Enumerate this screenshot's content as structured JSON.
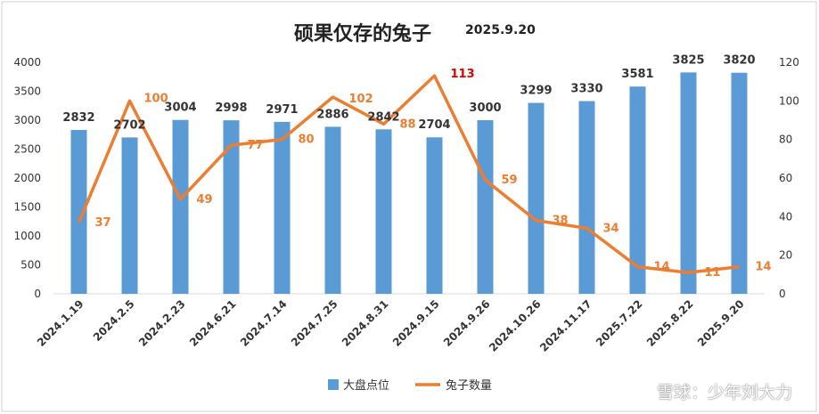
{
  "chart_data": {
    "type": "bar+line",
    "title": "硕果仅存的兔子",
    "subtitle": "2025.9.20",
    "categories": [
      "2024.1.19",
      "2024.2.5",
      "2024.2.23",
      "2024.6.21",
      "2024.7.14",
      "2024.7.25",
      "2024.8.31",
      "2024.9.15",
      "2024.9.26",
      "2024.10.26",
      "2024.11.17",
      "2025.7.22",
      "2025.8.22",
      "2025.9.20"
    ],
    "series": [
      {
        "name": "大盘点位",
        "type": "bar",
        "axis": "left",
        "color": "#5b9bd5",
        "values": [
          2832,
          2702,
          3004,
          2998,
          2971,
          2886,
          2842,
          2704,
          3000,
          3299,
          3330,
          3581,
          3825,
          3820
        ]
      },
      {
        "name": "兔子数量",
        "type": "line",
        "axis": "right",
        "color": "#ed7d31",
        "values": [
          37,
          100,
          49,
          77,
          80,
          102,
          88,
          113,
          59,
          38,
          34,
          14,
          11,
          14
        ]
      }
    ],
    "y_left": {
      "min": 0,
      "max": 4000,
      "ticks": [
        0,
        500,
        1000,
        1500,
        2000,
        2500,
        3000,
        3500,
        4000
      ]
    },
    "y_right": {
      "min": 0,
      "max": 120,
      "ticks": [
        0,
        20,
        40,
        60,
        80,
        100,
        120
      ]
    },
    "highlight": {
      "value": 113,
      "color": "#e00000"
    },
    "legend_position": "bottom",
    "grid": false
  },
  "watermark": "雪球：少年刘大力"
}
